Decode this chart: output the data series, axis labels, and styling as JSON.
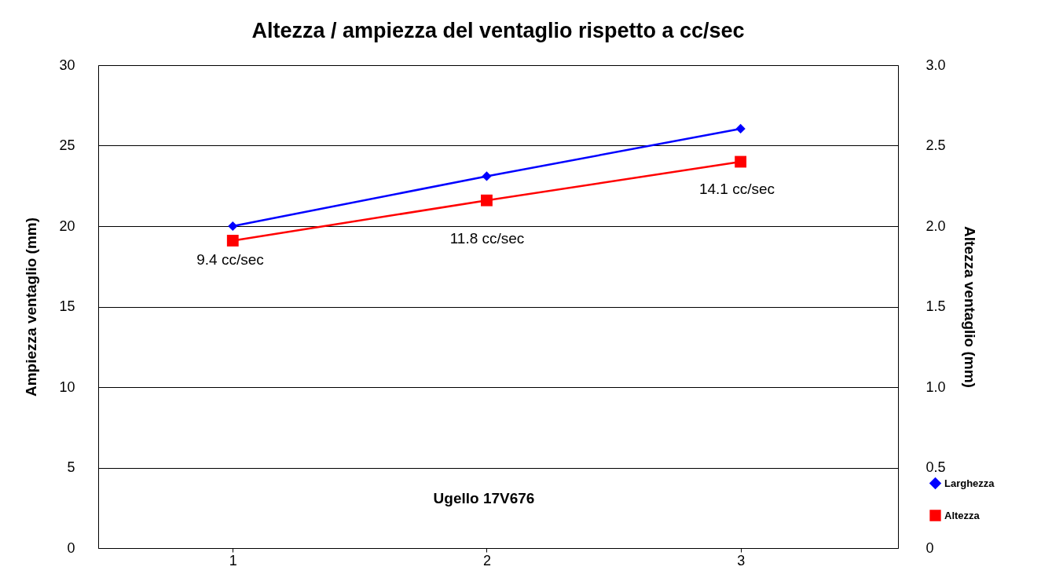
{
  "chart_data": {
    "type": "line",
    "title": "Altezza / ampiezza del ventaglio rispetto a cc/sec",
    "ylabel": "Ampiezza ventaglio (mm)",
    "y2label": "Altezza ventaglio (mm)",
    "x": [
      1,
      2,
      3
    ],
    "xlim": [
      0.47,
      3.62
    ],
    "xticks": [
      1,
      2,
      3
    ],
    "ylim": [
      0,
      30
    ],
    "yticks": [
      0,
      5,
      10,
      15,
      20,
      25,
      30
    ],
    "y2lim": [
      0,
      3
    ],
    "y2ticks": [
      0,
      {
        "value": 0.5,
        "label": "0.5"
      },
      {
        "value": 1,
        "label": "1.0"
      },
      {
        "value": 1.5,
        "label": "1.5"
      },
      {
        "value": 2,
        "label": "2.0"
      },
      {
        "value": 2.5,
        "label": "2.5"
      },
      {
        "value": 3,
        "label": "3.0"
      }
    ],
    "series": [
      {
        "name": "Larghezza",
        "color": "#0000ff",
        "marker": "diamond",
        "values": [
          20.0,
          23.1,
          26.05
        ]
      },
      {
        "name": "Altezza",
        "color": "#ff0000",
        "marker": "square",
        "axis": "y2",
        "values": [
          1.91,
          2.16,
          2.4
        ]
      }
    ],
    "annotations": [
      "9.4 cc/sec",
      "11.8 cc/sec",
      "14.1 cc/sec",
      "Ugello 17V676"
    ],
    "grid": "y",
    "legend": "right"
  }
}
